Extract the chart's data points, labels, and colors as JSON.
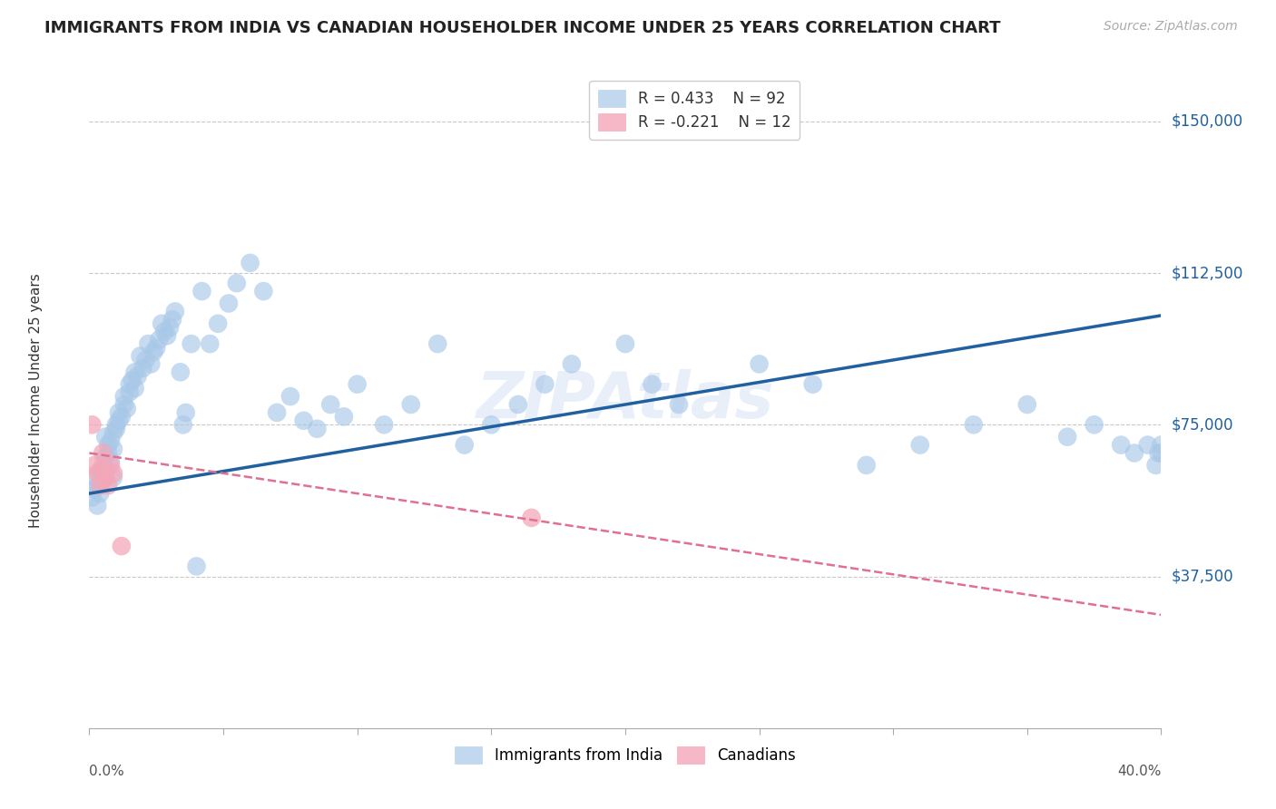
{
  "title": "IMMIGRANTS FROM INDIA VS CANADIAN HOUSEHOLDER INCOME UNDER 25 YEARS CORRELATION CHART",
  "source": "Source: ZipAtlas.com",
  "ylabel": "Householder Income Under 25 years",
  "watermark": "ZIPAtlas",
  "ytick_labels": [
    "$37,500",
    "$75,000",
    "$112,500",
    "$150,000"
  ],
  "ytick_values": [
    37500,
    75000,
    112500,
    150000
  ],
  "ylim": [
    0,
    162000
  ],
  "xlim": [
    0.0,
    0.4
  ],
  "legend_blue_r": "0.433",
  "legend_blue_n": "92",
  "legend_pink_r": "-0.221",
  "legend_pink_n": "12",
  "blue_color": "#a8c8e8",
  "pink_color": "#f4a7b9",
  "trendline_blue": "#2060a0",
  "trendline_pink": "#e07090",
  "blue_scatter_x": [
    0.001,
    0.002,
    0.002,
    0.003,
    0.003,
    0.004,
    0.004,
    0.005,
    0.005,
    0.006,
    0.006,
    0.006,
    0.007,
    0.007,
    0.008,
    0.008,
    0.009,
    0.009,
    0.009,
    0.01,
    0.01,
    0.011,
    0.011,
    0.012,
    0.013,
    0.013,
    0.014,
    0.015,
    0.015,
    0.016,
    0.017,
    0.017,
    0.018,
    0.019,
    0.02,
    0.021,
    0.022,
    0.023,
    0.024,
    0.025,
    0.026,
    0.027,
    0.028,
    0.029,
    0.03,
    0.031,
    0.032,
    0.034,
    0.035,
    0.036,
    0.038,
    0.04,
    0.042,
    0.045,
    0.048,
    0.052,
    0.055,
    0.06,
    0.065,
    0.07,
    0.075,
    0.08,
    0.085,
    0.09,
    0.095,
    0.1,
    0.11,
    0.12,
    0.13,
    0.14,
    0.15,
    0.16,
    0.17,
    0.18,
    0.2,
    0.21,
    0.22,
    0.25,
    0.27,
    0.29,
    0.31,
    0.33,
    0.35,
    0.365,
    0.375,
    0.385,
    0.39,
    0.395,
    0.398,
    0.399,
    0.4,
    0.4
  ],
  "blue_scatter_y": [
    57000,
    62000,
    59000,
    55000,
    60000,
    63000,
    58000,
    61000,
    65000,
    67000,
    64000,
    72000,
    70000,
    68000,
    66000,
    71000,
    69000,
    73000,
    62000,
    75000,
    74000,
    76000,
    78000,
    77000,
    80000,
    82000,
    79000,
    85000,
    83000,
    86000,
    88000,
    84000,
    87000,
    92000,
    89000,
    91000,
    95000,
    90000,
    93000,
    94000,
    96000,
    100000,
    98000,
    97000,
    99000,
    101000,
    103000,
    88000,
    75000,
    78000,
    95000,
    40000,
    108000,
    95000,
    100000,
    105000,
    110000,
    115000,
    108000,
    78000,
    82000,
    76000,
    74000,
    80000,
    77000,
    85000,
    75000,
    80000,
    95000,
    70000,
    75000,
    80000,
    85000,
    90000,
    95000,
    85000,
    80000,
    90000,
    85000,
    65000,
    70000,
    75000,
    80000,
    72000,
    75000,
    70000,
    68000,
    70000,
    65000,
    68000,
    70000,
    68000
  ],
  "pink_scatter_x": [
    0.001,
    0.002,
    0.003,
    0.004,
    0.005,
    0.005,
    0.006,
    0.007,
    0.008,
    0.009,
    0.012,
    0.165
  ],
  "pink_scatter_y": [
    75000,
    65000,
    63000,
    60000,
    64000,
    68000,
    62000,
    60000,
    65000,
    63000,
    45000,
    52000
  ],
  "blue_trend_x": [
    0.0,
    0.4
  ],
  "blue_trend_y": [
    58000,
    102000
  ],
  "pink_trend_x": [
    0.0,
    0.4
  ],
  "pink_trend_y": [
    68000,
    28000
  ],
  "grid_color": "#c8c8c8",
  "background_color": "#ffffff",
  "xtick_positions": [
    0.0,
    0.05,
    0.1,
    0.15,
    0.2,
    0.25,
    0.3,
    0.35,
    0.4
  ]
}
